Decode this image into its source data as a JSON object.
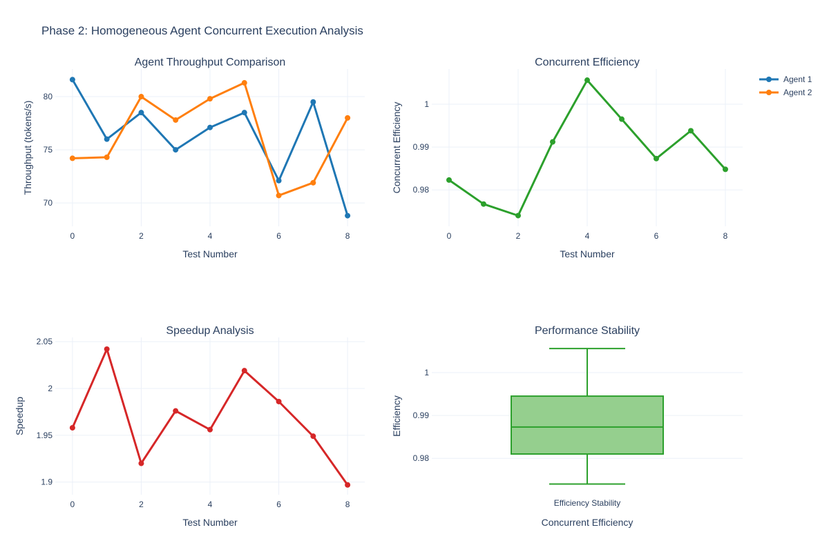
{
  "title": "Phase 2: Homogeneous Agent Concurrent Execution Analysis",
  "colors": {
    "agent1": "#1f77b4",
    "agent2": "#ff7f0e",
    "efficiency": "#2ca02c",
    "speedup": "#d62728",
    "box_fill": "#95cf8e",
    "grid": "#ebf0f8",
    "text": "#2a3f5f"
  },
  "legend": [
    {
      "name": "Agent 1",
      "color": "#1f77b4"
    },
    {
      "name": "Agent 2",
      "color": "#ff7f0e"
    }
  ],
  "chart_data": [
    {
      "type": "line",
      "title": "Agent Throughput Comparison",
      "xlabel": "Test Number",
      "ylabel": "Throughput (tokens/s)",
      "x": [
        0,
        1,
        2,
        3,
        4,
        5,
        6,
        7,
        8
      ],
      "xticks": [
        0,
        2,
        4,
        6,
        8
      ],
      "yticks": [
        70,
        75,
        80
      ],
      "xlim": [
        -0.5,
        8.5
      ],
      "ylim": [
        67.8,
        82.6
      ],
      "series": [
        {
          "name": "Agent 1",
          "values": [
            81.6,
            76.0,
            78.5,
            75.0,
            77.1,
            78.5,
            72.1,
            79.5,
            68.8
          ]
        },
        {
          "name": "Agent 2",
          "values": [
            74.2,
            74.3,
            80.0,
            77.8,
            79.8,
            81.3,
            70.7,
            71.9,
            78.0
          ]
        }
      ]
    },
    {
      "type": "line",
      "title": "Concurrent Efficiency",
      "xlabel": "Test Number",
      "ylabel": "Concurrent Efficiency",
      "x": [
        0,
        1,
        2,
        3,
        4,
        5,
        6,
        7,
        8
      ],
      "xticks": [
        0,
        2,
        4,
        6,
        8
      ],
      "yticks": [
        0.98,
        0.99,
        1
      ],
      "ytick_labels": [
        "0.98",
        "0.99",
        "1"
      ],
      "xlim": [
        -0.5,
        8.5
      ],
      "ylim": [
        0.9715,
        1.0082
      ],
      "series": [
        {
          "name": "Efficiency",
          "values": [
            0.9823,
            0.9767,
            0.974,
            0.9912,
            1.0056,
            0.9965,
            0.9873,
            0.9938,
            0.9848
          ]
        }
      ]
    },
    {
      "type": "line",
      "title": "Speedup Analysis",
      "xlabel": "Test Number",
      "ylabel": "Speedup",
      "x": [
        0,
        1,
        2,
        3,
        4,
        5,
        6,
        7,
        8
      ],
      "xticks": [
        0,
        2,
        4,
        6,
        8
      ],
      "yticks": [
        1.9,
        1.95,
        2,
        2.05
      ],
      "ytick_labels": [
        "1.9",
        "1.95",
        "2",
        "2.05"
      ],
      "xlim": [
        -0.5,
        8.5
      ],
      "ylim": [
        1.8865,
        2.0545
      ],
      "series": [
        {
          "name": "Speedup",
          "values": [
            1.958,
            2.042,
            1.92,
            1.976,
            1.956,
            2.019,
            1.986,
            1.949,
            1.897
          ]
        }
      ]
    },
    {
      "type": "box",
      "title": "Performance Stability",
      "xlabel": "Concurrent Efficiency",
      "ylabel": "Efficiency",
      "category": "Efficiency Stability",
      "yticks": [
        0.98,
        0.99,
        1
      ],
      "ytick_labels": [
        "0.98",
        "0.99",
        "1"
      ],
      "ylim": [
        0.9715,
        1.0082
      ],
      "stats": {
        "min": 0.974,
        "q1": 0.981,
        "median": 0.9873,
        "q3": 0.9945,
        "max": 1.0056
      }
    }
  ]
}
